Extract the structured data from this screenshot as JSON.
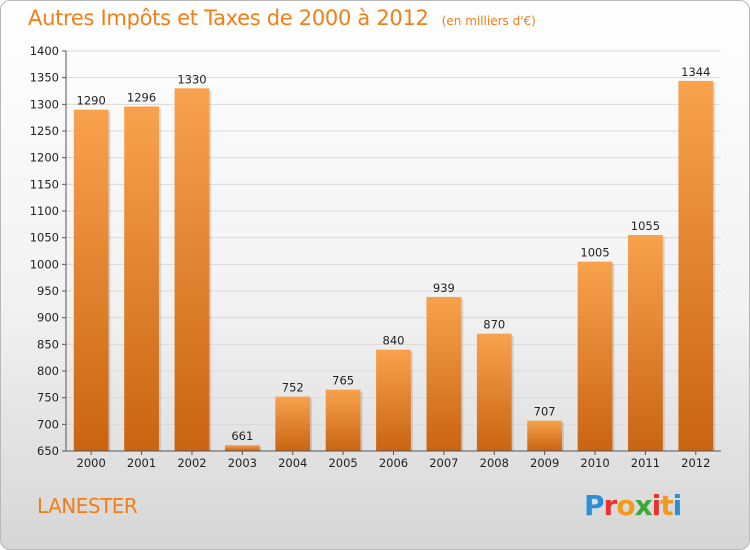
{
  "header": {
    "title": "Autres Impôts et Taxes de 2000 à 2012",
    "subtitle": "(en milliers d'€)"
  },
  "footer": {
    "place": "LANESTER",
    "logo_text": "Proxiti",
    "logo_colors": [
      "#2b8fd6",
      "#e9322d",
      "#f39a1e",
      "#3aa935",
      "#e9322d",
      "#f39a1e",
      "#2b8fd6"
    ]
  },
  "colors": {
    "accent": "#f07f1a",
    "bar_top": "#f8a24e",
    "bar_bottom": "#c96412",
    "grid": "#d9d9d9",
    "axis": "#555555"
  },
  "chart_data": {
    "type": "bar",
    "title": "Autres Impôts et Taxes de 2000 à 2012",
    "subtitle": "(en milliers d'€)",
    "categories": [
      "2000",
      "2001",
      "2002",
      "2003",
      "2004",
      "2005",
      "2006",
      "2007",
      "2008",
      "2009",
      "2010",
      "2011",
      "2012"
    ],
    "values": [
      1290,
      1296,
      1330,
      661,
      752,
      765,
      840,
      939,
      870,
      707,
      1005,
      1055,
      1344
    ],
    "ylim": [
      650,
      1400
    ],
    "ytick_step": 50,
    "grid": true,
    "legend": "none"
  }
}
